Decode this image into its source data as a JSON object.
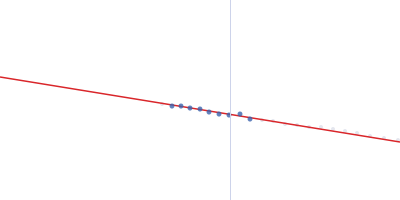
{
  "chart_data": {
    "type": "scatter",
    "xlim": [
      0,
      400
    ],
    "ylim": [
      0,
      200
    ],
    "grid": false,
    "tick_labels": false,
    "vline": {
      "x": 230,
      "color": "#cdd3ea"
    },
    "series": [
      {
        "type": "scatter",
        "color": "#dde0ea",
        "marker": "circle",
        "x": [
          162,
          262,
          273,
          285,
          297,
          309,
          321,
          333,
          345,
          357,
          370,
          384,
          398
        ],
        "values": [
          96,
          80,
          79,
          76,
          75,
          73,
          73,
          71,
          69,
          67,
          64,
          62,
          60
        ]
      },
      {
        "type": "line",
        "color": "#d9262a",
        "line_style": "solid",
        "x": [
          0,
          400
        ],
        "values": [
          123,
          58
        ]
      },
      {
        "type": "scatter",
        "color": "#3a63ad",
        "marker": "circle",
        "x": [
          172,
          181,
          190,
          200,
          209,
          219,
          229,
          240,
          250
        ],
        "values": [
          94,
          94,
          92,
          91,
          88,
          86,
          85,
          86,
          81
        ]
      }
    ]
  }
}
